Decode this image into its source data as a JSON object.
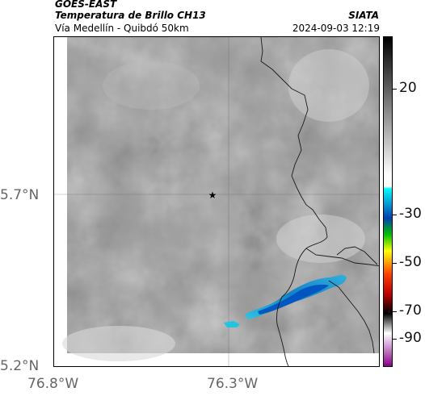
{
  "header": {
    "source": "GOES-EAST",
    "product": "Temperatura de Brillo CH13",
    "region": "Vía Medellín - Quibdó 50km",
    "brand": "SIATA",
    "timestamp": "2024-09-03 12:19"
  },
  "map": {
    "lat_labels": [
      "5.7°N",
      "5.2°N"
    ],
    "lon_labels": [
      "76.8°W",
      "76.3°W"
    ],
    "marker_icon": "star-icon",
    "grayscale_base": "#9a9a9a",
    "cold_cloud_color": "#0a7ec8",
    "border_color": "#1a1a1a"
  },
  "colorbar": {
    "labels": [
      "20",
      "-30",
      "-50",
      "-70",
      "-90"
    ],
    "gradient_stops": [
      "#ffffff",
      "#000000",
      "#00ffff",
      "#0050c0",
      "#00ff00",
      "#ffff00",
      "#ff0000",
      "#000000",
      "#ffffff",
      "#8b008b"
    ]
  }
}
